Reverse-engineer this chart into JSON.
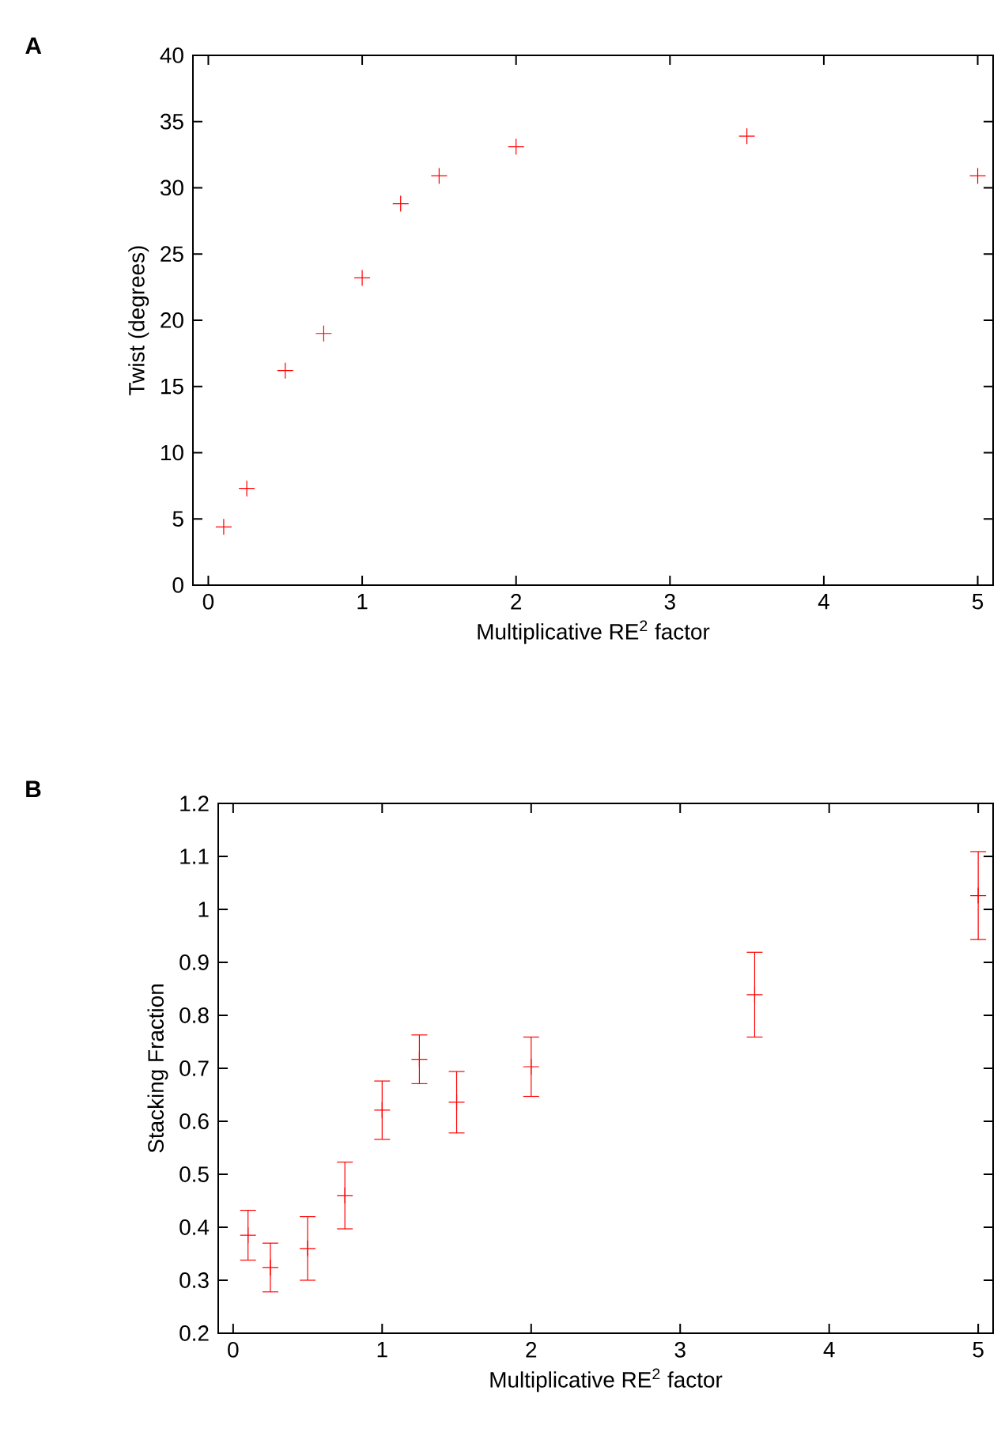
{
  "chart_data": [
    {
      "type": "scatter",
      "title": "A",
      "xlabel": "Multiplicative RE$^{2}$ factor",
      "ylabel": "Twist (degrees)",
      "marker": "cross",
      "series": [
        {
          "color": "#ff0000",
          "x": [
            0.1,
            0.25,
            0.5,
            0.75,
            1.0,
            1.25,
            1.5,
            2.0,
            3.5,
            5.0
          ],
          "values": [
            4.4,
            7.3,
            16.2,
            19.0,
            23.2,
            28.8,
            30.9,
            33.1,
            33.9,
            30.9
          ]
        }
      ],
      "xlim": [
        -0.1,
        5.1
      ],
      "ylim": [
        0,
        40
      ],
      "xticks": [
        0,
        1,
        2,
        3,
        4,
        5
      ],
      "yticks": [
        0,
        5,
        10,
        15,
        20,
        25,
        30,
        35,
        40
      ]
    },
    {
      "type": "scatter",
      "title": "B",
      "xlabel": "Multiplicative RE$^{2}$ factor",
      "ylabel": "Stacking Fraction",
      "marker": "cross",
      "series": [
        {
          "color": "#ff0000",
          "x": [
            0.1,
            0.25,
            0.5,
            0.75,
            1.0,
            1.25,
            1.5,
            2.0,
            3.5,
            5.0
          ],
          "values": [
            0.385,
            0.324,
            0.36,
            0.46,
            0.621,
            0.717,
            0.636,
            0.703,
            0.839,
            1.026
          ],
          "errors": [
            0.047,
            0.046,
            0.06,
            0.063,
            0.055,
            0.046,
            0.058,
            0.056,
            0.08,
            0.083
          ]
        }
      ],
      "xlim": [
        -0.1,
        5.1
      ],
      "ylim": [
        0.2,
        1.2
      ],
      "xticks": [
        0,
        1,
        2,
        3,
        4,
        5
      ],
      "yticks": [
        0.2,
        0.3,
        0.4,
        0.5,
        0.6,
        0.7,
        0.8,
        0.9,
        1,
        1.1,
        1.2
      ]
    }
  ]
}
